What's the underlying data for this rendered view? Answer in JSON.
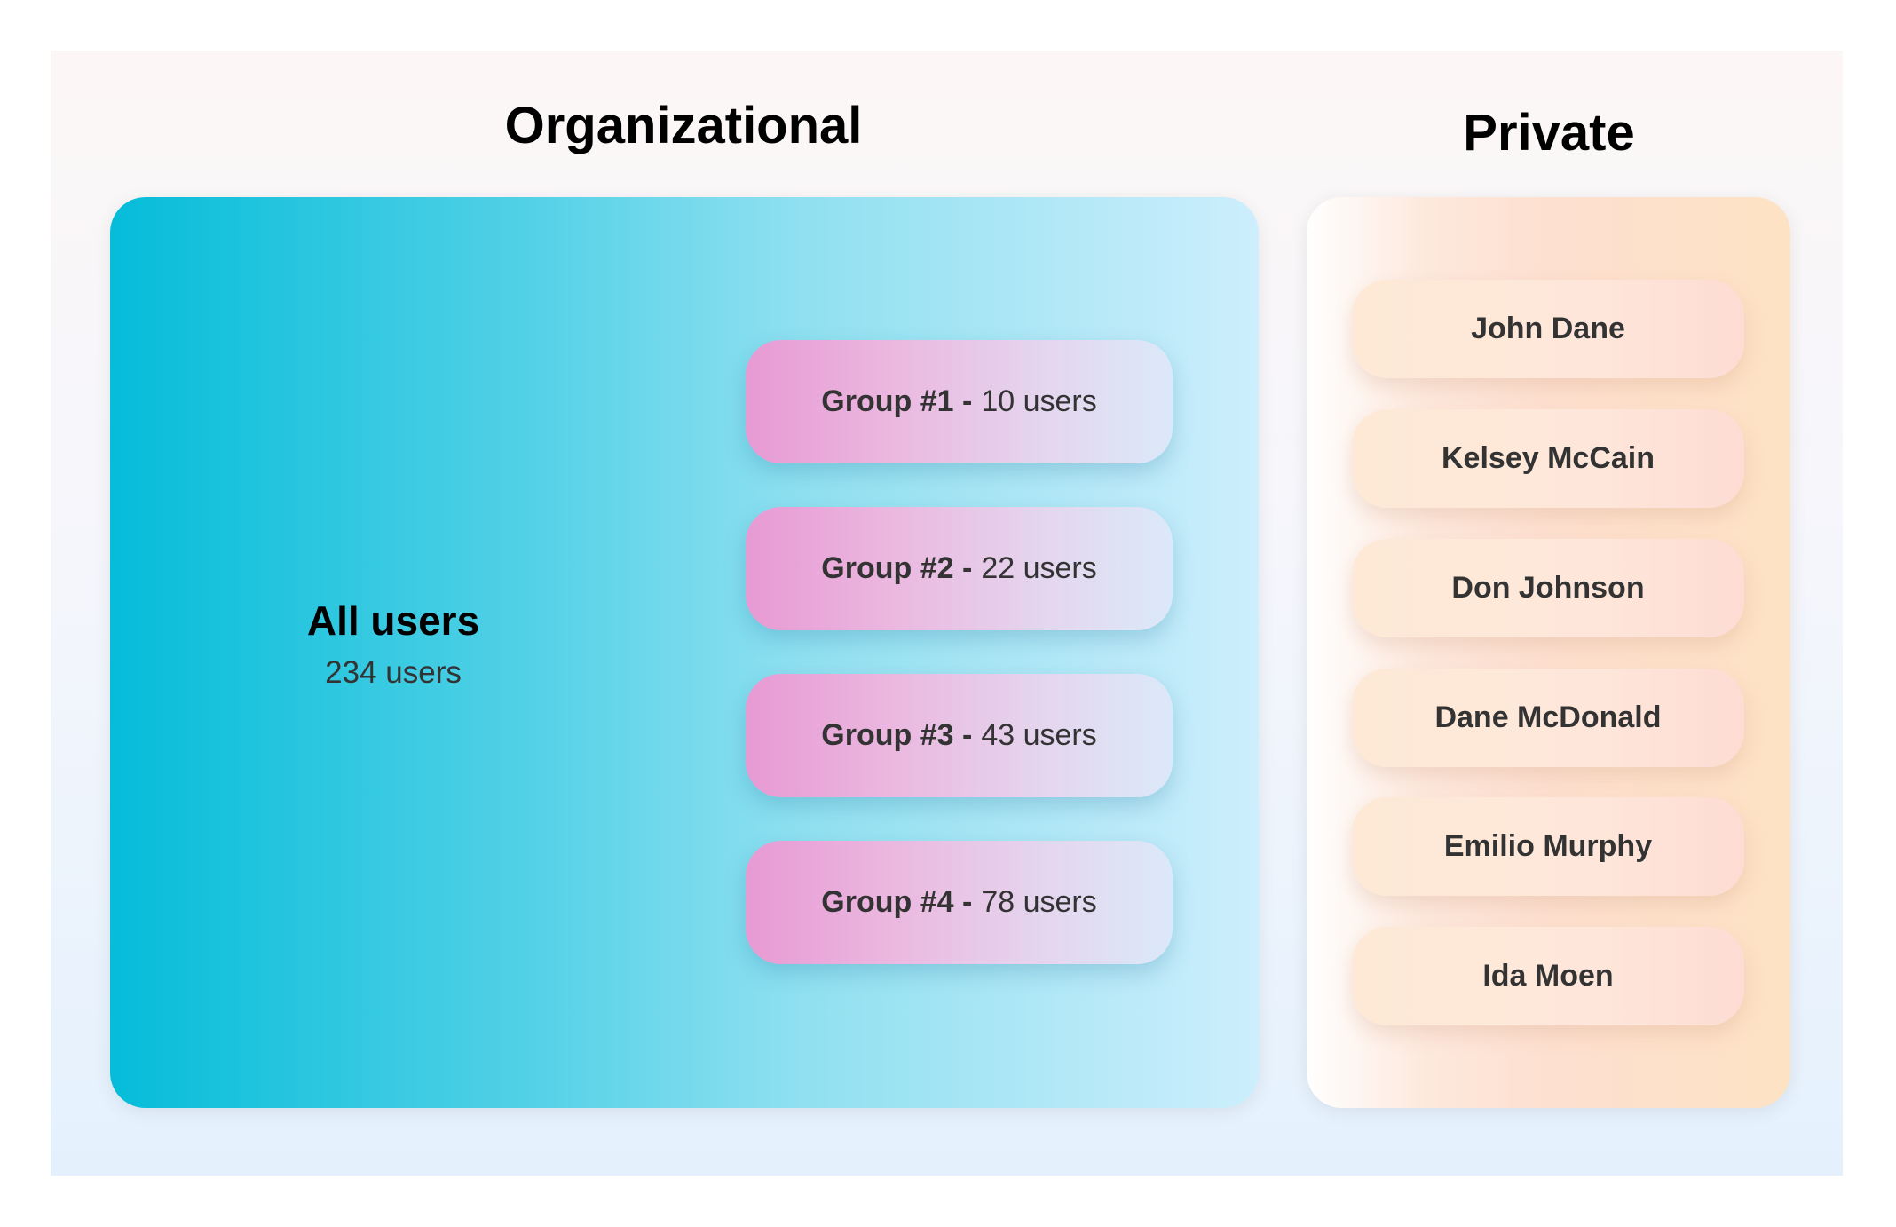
{
  "organizational": {
    "title": "Organizational",
    "all_users": {
      "label": "All users",
      "count": "234 users"
    },
    "groups": [
      {
        "name": "Group #1 -",
        "count": "10 users"
      },
      {
        "name": "Group #2 -",
        "count": "22 users"
      },
      {
        "name": "Group #3 -",
        "count": "43 users"
      },
      {
        "name": "Group #4 -",
        "count": "78 users"
      }
    ]
  },
  "private": {
    "title": "Private",
    "people": [
      "John Dane",
      "Kelsey McCain",
      "Don Johnson",
      "Dane McDonald",
      "Emilio Murphy",
      "Ida Moen"
    ]
  }
}
